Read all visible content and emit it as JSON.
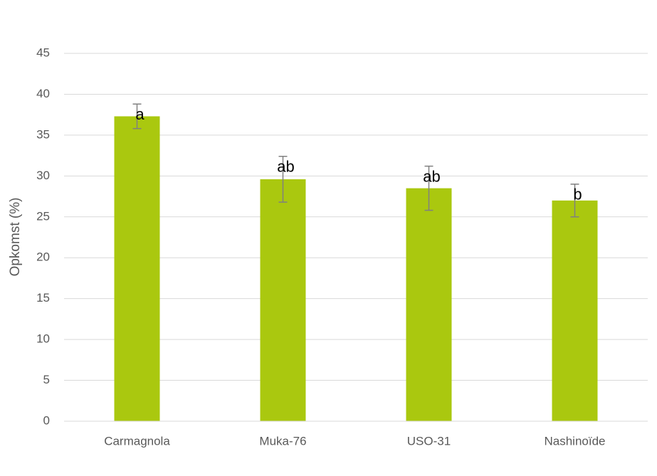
{
  "chart_data": {
    "type": "bar",
    "y_label": "Opkomst (%)",
    "categories": [
      "Carmagnola",
      "Muka-76",
      "USO-31",
      "Nashinoïde"
    ],
    "values": [
      37.3,
      29.6,
      28.5,
      27.0
    ],
    "errors": [
      1.5,
      2.8,
      2.7,
      2.0
    ],
    "letters": [
      "a",
      "ab",
      "ab",
      "b"
    ],
    "color": "#aac80f",
    "error_color": "#808080",
    "ylim": [
      0,
      45
    ],
    "yticks": [
      0,
      5,
      10,
      15,
      20,
      25,
      30,
      35,
      40,
      45
    ],
    "grid": true
  }
}
